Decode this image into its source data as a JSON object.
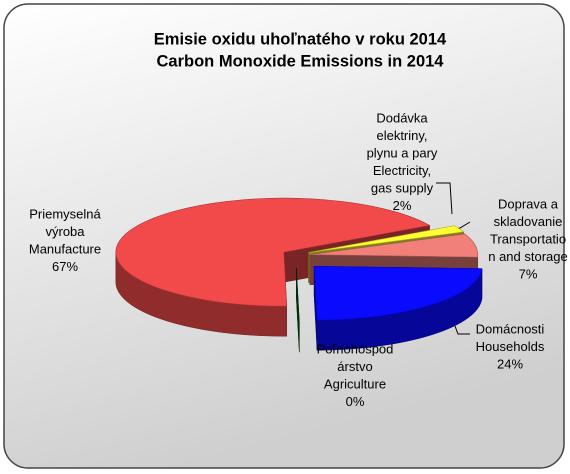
{
  "chart_data": {
    "type": "pie",
    "title": [
      "Emisie oxidu uhoľnatého v roku 2014",
      "Carbon Monoxide Emissions in 2014"
    ],
    "categories": [
      [
        "Priemyselná",
        "výroba",
        "Manufacture"
      ],
      [
        "Dodávka",
        "elektriny,",
        "plynu a pary",
        "Electricity,",
        "gas supply"
      ],
      [
        "Doprava a",
        "skladovanie",
        "Transportatio",
        "n and storage"
      ],
      [
        "Domácnosti",
        "Households"
      ],
      [
        "Poľnohospod",
        "árstvo",
        "Agriculture"
      ]
    ],
    "values": [
      67,
      2,
      7,
      24,
      0
    ],
    "value_labels": [
      "67%",
      "2%",
      "7%",
      "24%",
      "0%"
    ],
    "colors": [
      "#f24a4a",
      "#ffff33",
      "#f08078",
      "#0a0aff",
      "#0b5a0b"
    ]
  }
}
